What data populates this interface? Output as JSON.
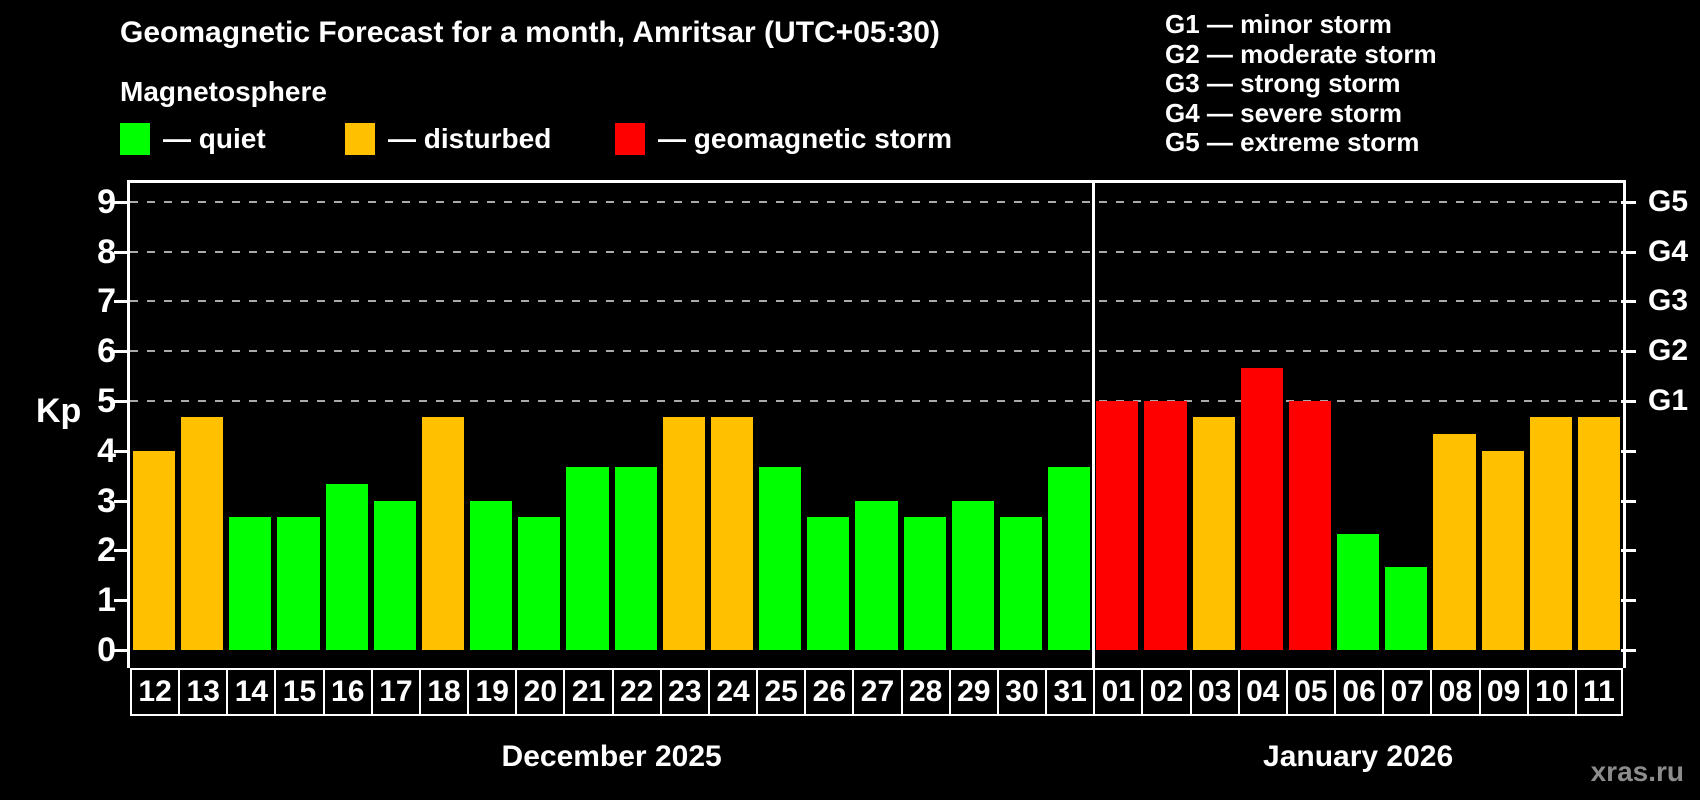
{
  "title": "Geomagnetic Forecast for a month, Amritsar (UTC+05:30)",
  "subtitle": "Magnetosphere",
  "legend": {
    "quiet_label": "— quiet",
    "disturbed_label": "— disturbed",
    "storm_label": "— geomagnetic storm"
  },
  "g_legend": [
    "G1 — minor storm",
    "G2 — moderate storm",
    "G3 — strong storm",
    "G4 — severe storm",
    "G5 — extreme storm"
  ],
  "axis": {
    "kp_label": "Kp"
  },
  "months": [
    {
      "label": "December 2025",
      "days": 20
    },
    {
      "label": "January 2026",
      "days": 11
    }
  ],
  "watermark": "xras.ru",
  "colors": {
    "quiet": "#00ff00",
    "disturbed": "#ffc000",
    "storm": "#ff0000",
    "grid": "#aaaaaa",
    "frame": "#ffffff"
  },
  "chart_data": {
    "type": "bar",
    "title": "Geomagnetic Forecast for a month, Amritsar (UTC+05:30)",
    "ylabel": "Kp",
    "ylim": [
      0,
      9
    ],
    "y_ticks": [
      0,
      1,
      2,
      3,
      4,
      5,
      6,
      7,
      8,
      9
    ],
    "gridlines_at": [
      5,
      6,
      7,
      8,
      9
    ],
    "grid": true,
    "legend_position": "top-left",
    "right_axis_labels": [
      {
        "kp": 5,
        "label": "G1"
      },
      {
        "kp": 6,
        "label": "G2"
      },
      {
        "kp": 7,
        "label": "G3"
      },
      {
        "kp": 8,
        "label": "G4"
      },
      {
        "kp": 9,
        "label": "G5"
      }
    ],
    "categories": [
      "12",
      "13",
      "14",
      "15",
      "16",
      "17",
      "18",
      "19",
      "20",
      "21",
      "22",
      "23",
      "24",
      "25",
      "26",
      "27",
      "28",
      "29",
      "30",
      "31",
      "01",
      "02",
      "03",
      "04",
      "05",
      "06",
      "07",
      "08",
      "09",
      "10",
      "11"
    ],
    "values": [
      4,
      4.67,
      2.67,
      2.67,
      3.33,
      3,
      4.67,
      3,
      2.67,
      3.67,
      3.67,
      4.67,
      4.67,
      3.67,
      2.67,
      3,
      2.67,
      3,
      2.67,
      3.67,
      5,
      5,
      4.67,
      5.67,
      5,
      2.33,
      1.67,
      4.33,
      4,
      4.67,
      4.67
    ],
    "statuses": [
      "disturbed",
      "disturbed",
      "quiet",
      "quiet",
      "quiet",
      "quiet",
      "disturbed",
      "quiet",
      "quiet",
      "quiet",
      "quiet",
      "disturbed",
      "disturbed",
      "quiet",
      "quiet",
      "quiet",
      "quiet",
      "quiet",
      "quiet",
      "quiet",
      "storm",
      "storm",
      "disturbed",
      "storm",
      "storm",
      "quiet",
      "quiet",
      "disturbed",
      "disturbed",
      "disturbed",
      "disturbed"
    ]
  }
}
